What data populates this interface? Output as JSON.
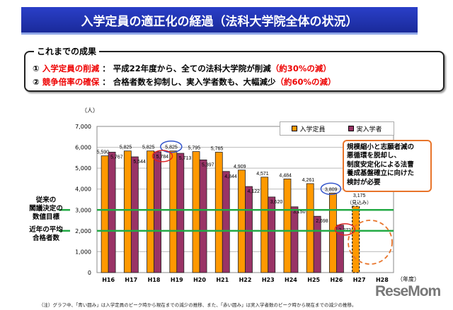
{
  "title": "入学定員の適正化の経過（法科大学院全体の状況）",
  "results": {
    "heading": "これまでの成果",
    "items": [
      {
        "num": "①",
        "label": "入学定員の削減",
        "sep": "：",
        "text": "平成22年度から、全ての法科大学院が削減",
        "paren": "（約30%の減）"
      },
      {
        "num": "②",
        "label": "競争倍率の確保",
        "sep": "：",
        "text": "合格者数を抑制し、実入学者数も、大幅減少",
        "paren": "（約60%の減）"
      }
    ]
  },
  "side_labels": {
    "target": "従来の\n閣議決定の\n数値目標",
    "average": "近年の平均\n合格者数"
  },
  "callout": "規模縮小と志願者減の\n悪循環を脱却し、\n制度安定化による法曹\n養成基盤確立に向けた\n検討が必要",
  "note": "（注）グラフ中、「青い囲み」は入学定員のピーク時から現在までの減少の推移、また、「赤い囲み」は実入学者数のピーク時から現在までの減少の推移。",
  "logo": "ReseMom",
  "colors": {
    "capacity": "#ff9900",
    "enrolled": "#993366",
    "reference_line": "#22aa44",
    "blue_circle": "#3355cc",
    "red_circle": "#dd2222",
    "callout_border": "#e8742a"
  },
  "chart_data": {
    "type": "bar",
    "categories": [
      "H16",
      "H17",
      "H18",
      "H19",
      "H20",
      "H21",
      "H22",
      "H23",
      "H24",
      "H25",
      "H26",
      "H27",
      "H28"
    ],
    "series": [
      {
        "name": "入学定員",
        "values": [
          5590,
          5825,
          5825,
          5825,
          5795,
          5765,
          4909,
          4571,
          4484,
          4261,
          3809,
          3175,
          null
        ]
      },
      {
        "name": "実入学者",
        "values": [
          5767,
          5544,
          5784,
          5713,
          5397,
          4844,
          4122,
          3620,
          3150,
          2698,
          2272,
          null,
          null
        ]
      }
    ],
    "estimate_label": "（見込み）",
    "ylabel": "（人）",
    "xlabel": "（年度）",
    "ylim": [
      0,
      7000
    ],
    "yticks": [
      0,
      1000,
      2000,
      3000,
      4000,
      5000,
      6000,
      7000
    ],
    "reference_lines": [
      3000,
      2000
    ],
    "legend": "top-right",
    "grid": true
  }
}
